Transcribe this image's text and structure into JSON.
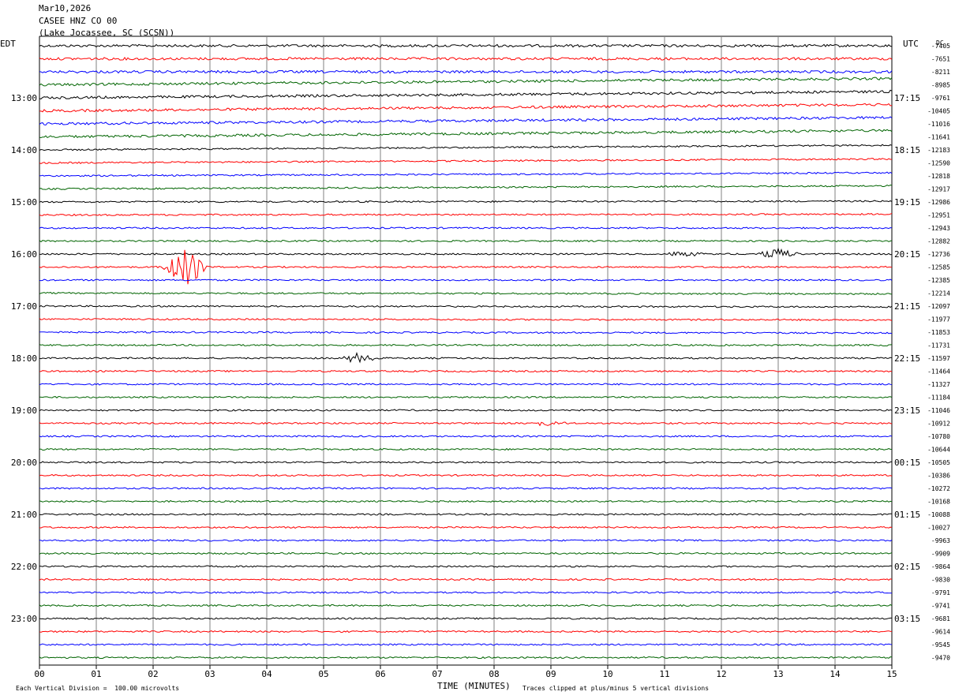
{
  "header": {
    "date": "Mar10,2026",
    "station": "CASEE HNZ CO 00",
    "location": "(Lake Jocassee, SC (SCSN))"
  },
  "left_timezone": "EDT",
  "right_timezone": "UTC",
  "dc_label": "DC",
  "footer": {
    "scale": "Each Vertical Division =  100.00 microvolts",
    "xlabel": "TIME (MINUTES)",
    "clip": "Traces clipped at plus/minus 5 vertical divisions"
  },
  "colors": {
    "black": "#000000",
    "red": "#ff0000",
    "blue": "#0000ff",
    "green": "#006400",
    "grid": "#808080"
  },
  "chart_data": {
    "type": "line",
    "title": "CASEE HNZ CO 00",
    "xlabel": "TIME (MINUTES)",
    "xlim": [
      0,
      15
    ],
    "x_ticks": [
      "00",
      "01",
      "02",
      "03",
      "04",
      "05",
      "06",
      "07",
      "08",
      "09",
      "10",
      "11",
      "12",
      "13",
      "14",
      "15"
    ],
    "left_hour_labels": [
      "13:00",
      "14:00",
      "15:00",
      "16:00",
      "17:00",
      "18:00",
      "19:00",
      "20:00",
      "21:00",
      "22:00",
      "23:00"
    ],
    "right_hour_labels": [
      "17:15",
      "18:15",
      "19:15",
      "20:15",
      "21:15",
      "22:15",
      "23:15",
      "00:15",
      "01:15",
      "02:15",
      "03:15"
    ],
    "dc_offsets": [
      "-7405",
      "-7651",
      "-8211",
      "-8985",
      "-9761",
      "-10405",
      "-11016",
      "-11641",
      "-12183",
      "-12590",
      "-12818",
      "-12917",
      "-12986",
      "-12951",
      "-12943",
      "-12882",
      "-12736",
      "-12585",
      "-12385",
      "-12214",
      "-12097",
      "-11977",
      "-11853",
      "-11731",
      "-11597",
      "-11464",
      "-11327",
      "-11184",
      "-11046",
      "-10912",
      "-10780",
      "-10644",
      "-10505",
      "-10386",
      "-10272",
      "-10168",
      "-10088",
      "-10027",
      "-9963",
      "-9909",
      "-9864",
      "-9830",
      "-9791",
      "-9741",
      "-9681",
      "-9614",
      "-9545",
      "-9470"
    ],
    "trace_colors": [
      "black",
      "red",
      "blue",
      "green"
    ],
    "trace_drift": [
      0,
      0,
      0,
      8,
      8,
      8,
      8,
      8,
      6,
      5,
      4,
      4,
      1,
      1,
      0,
      0,
      0,
      0,
      0,
      -1,
      -1,
      -1,
      -1,
      0,
      0,
      0,
      0,
      0,
      0,
      0,
      0,
      0,
      0,
      0,
      0,
      0,
      0,
      0,
      0,
      0,
      0,
      0,
      0,
      0,
      0,
      0,
      0,
      0
    ],
    "events": [
      {
        "trace": 17,
        "minute": 2.55,
        "amplitude": 28
      },
      {
        "trace": 17,
        "minute": 2.6,
        "amplitude": 6
      },
      {
        "trace": 16,
        "minute": 13.0,
        "amplitude": 8
      },
      {
        "trace": 24,
        "minute": 5.6,
        "amplitude": 6
      },
      {
        "trace": 16,
        "minute": 11.3,
        "amplitude": 4
      },
      {
        "trace": 29,
        "minute": 9.0,
        "amplitude": 4
      }
    ]
  }
}
